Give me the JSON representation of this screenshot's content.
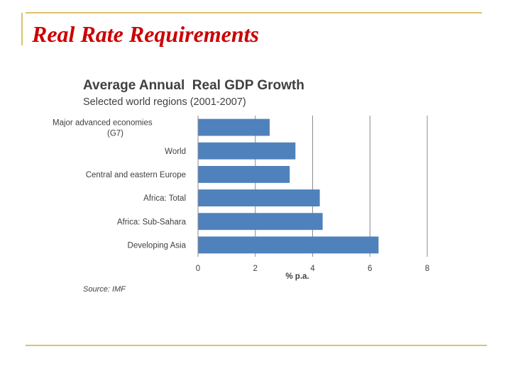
{
  "slide": {
    "title": "Real Rate Requirements"
  },
  "colors": {
    "bar": "#4f81bd",
    "title": "#cc0000",
    "rule": "#d9c46a",
    "grid": "#8c8c8c"
  },
  "chart_data": {
    "type": "bar",
    "orientation": "horizontal",
    "title": "Average Annual  Real GDP Growth",
    "subtitle": "Selected world regions (2001-2007)",
    "categories": [
      [
        "Major advanced economies",
        "(G7)"
      ],
      [
        "World"
      ],
      [
        "Central and eastern Europe"
      ],
      [
        "Africa: Total"
      ],
      [
        "Africa: Sub-Sahara"
      ],
      [
        "Developing Asia"
      ]
    ],
    "values": [
      2.5,
      3.4,
      3.2,
      4.25,
      4.35,
      6.3
    ],
    "xlabel": "% p.a.",
    "xlim": [
      0,
      8
    ],
    "xticks": [
      "0",
      "2",
      "4",
      "6",
      "8"
    ],
    "grid": true,
    "source": "Source: IMF"
  }
}
